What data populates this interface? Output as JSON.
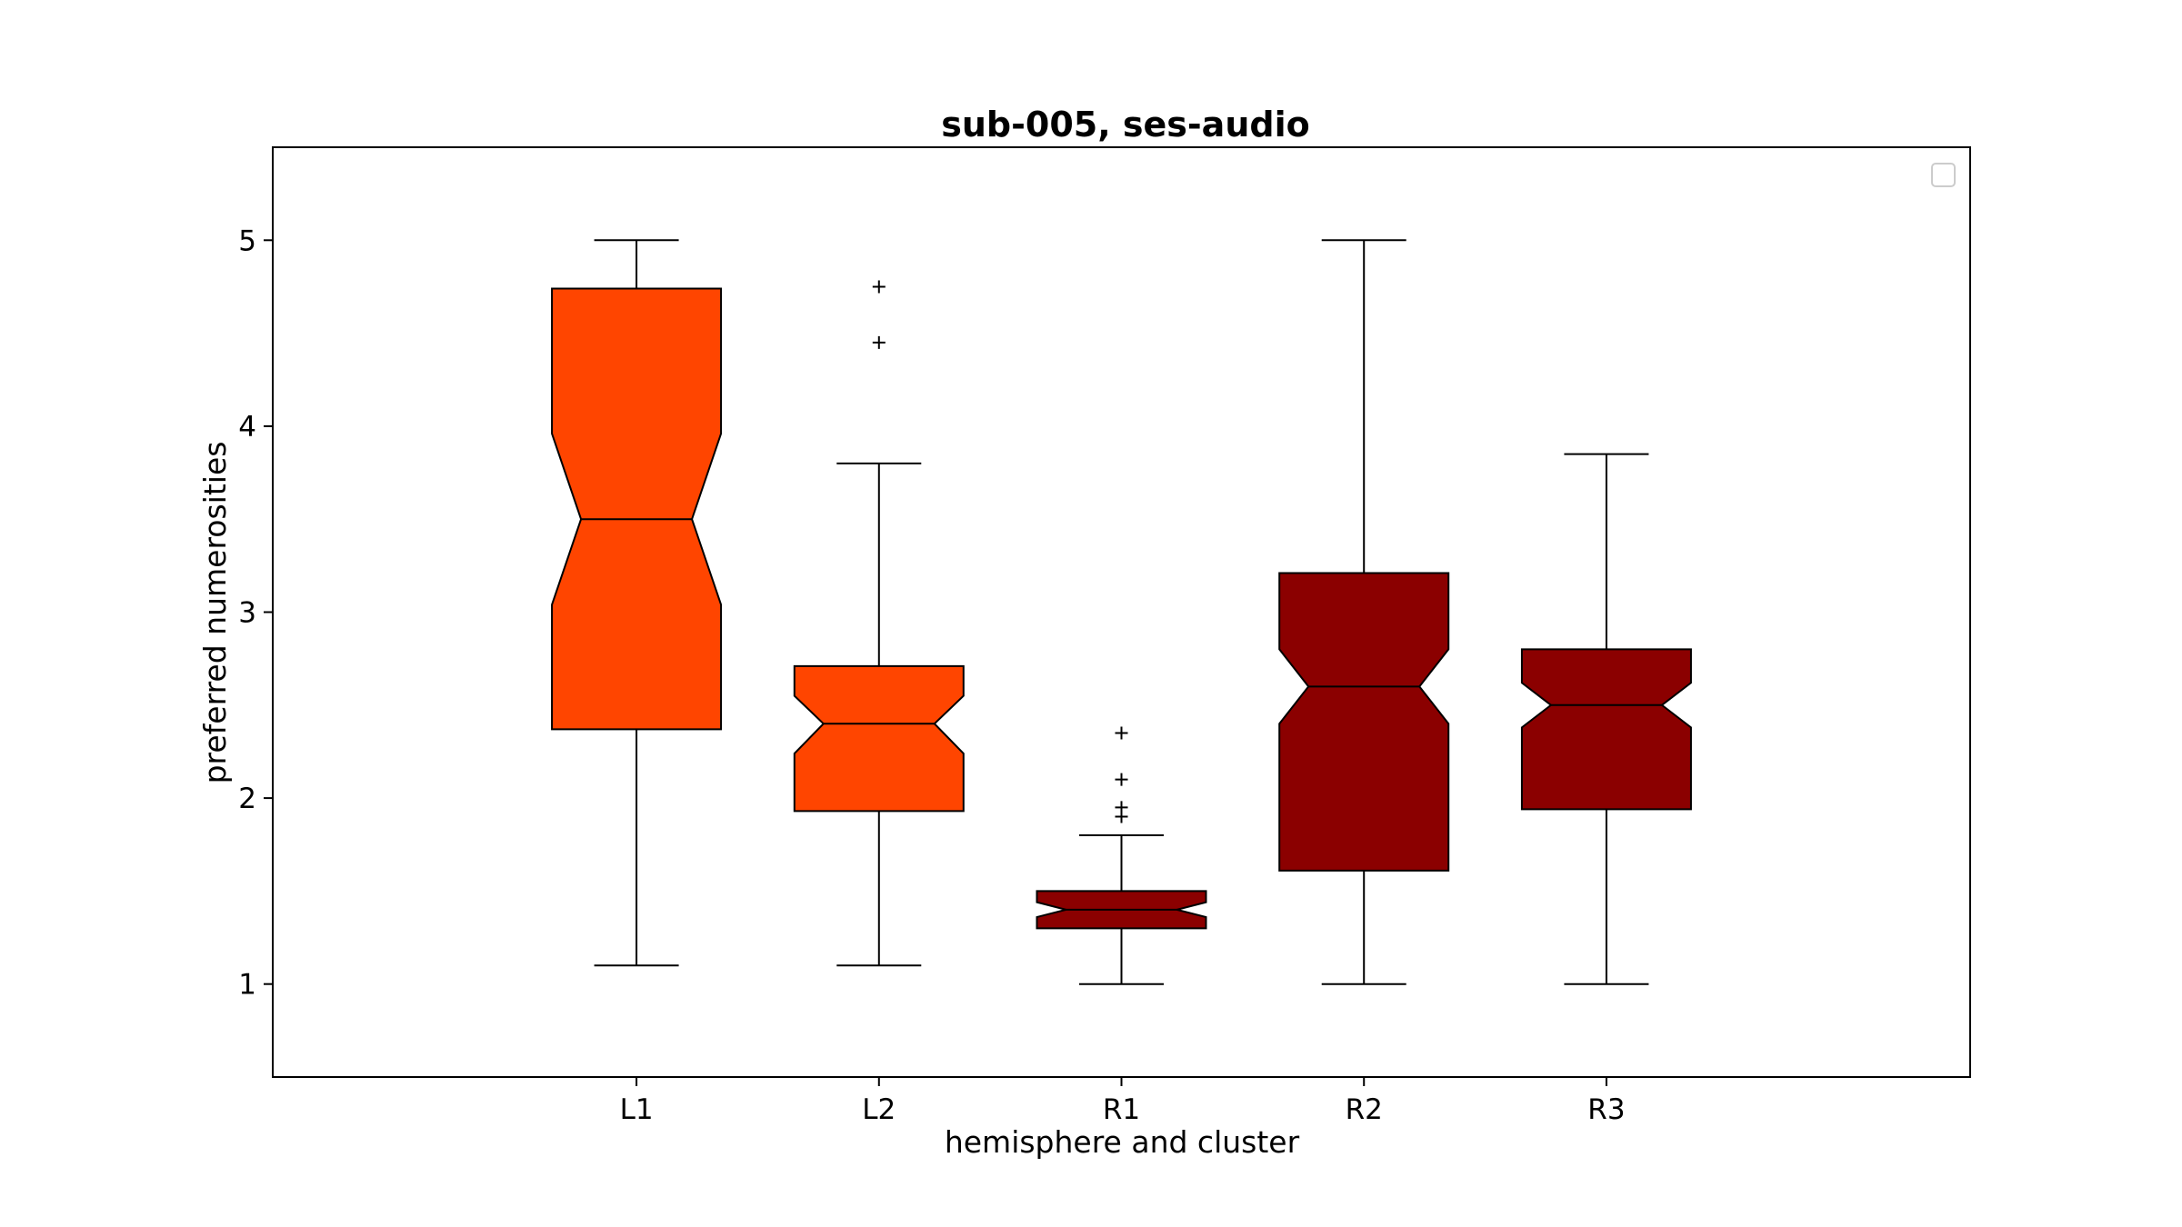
{
  "chart_data": {
    "type": "boxplot",
    "title": "sub-005, ses-audio",
    "xlabel": "hemisphere and cluster",
    "ylabel": "preferred numerosities",
    "ylim": [
      0.5,
      5.5
    ],
    "yticks": [
      "1",
      "2",
      "3",
      "4",
      "5"
    ],
    "notched": true,
    "legend": {
      "placement": "top-right",
      "entries": []
    },
    "boxes": [
      {
        "label": "L1",
        "color": "#ff4500",
        "whisker_low": 1.1,
        "q1": 2.37,
        "median": 3.5,
        "q3": 4.74,
        "whisker_high": 5.0,
        "notch_low": 3.04,
        "notch_high": 3.96,
        "outliers": []
      },
      {
        "label": "L2",
        "color": "#ff4500",
        "whisker_low": 1.1,
        "q1": 1.93,
        "median": 2.4,
        "q3": 2.71,
        "whisker_high": 3.8,
        "notch_low": 2.24,
        "notch_high": 2.55,
        "outliers": [
          4.45,
          4.75
        ]
      },
      {
        "label": "R1",
        "color": "#8b0000",
        "whisker_low": 1.0,
        "q1": 1.3,
        "median": 1.4,
        "q3": 1.5,
        "whisker_high": 1.8,
        "notch_low": 1.36,
        "notch_high": 1.44,
        "outliers": [
          1.9,
          1.95,
          2.1,
          2.35
        ]
      },
      {
        "label": "R2",
        "color": "#8b0000",
        "whisker_low": 1.0,
        "q1": 1.61,
        "median": 2.6,
        "q3": 3.21,
        "whisker_high": 5.0,
        "notch_low": 2.4,
        "notch_high": 2.8,
        "outliers": []
      },
      {
        "label": "R3",
        "color": "#8b0000",
        "whisker_low": 1.0,
        "q1": 1.94,
        "median": 2.5,
        "q3": 2.8,
        "whisker_high": 3.85,
        "notch_low": 2.38,
        "notch_high": 2.62,
        "outliers": []
      }
    ]
  }
}
